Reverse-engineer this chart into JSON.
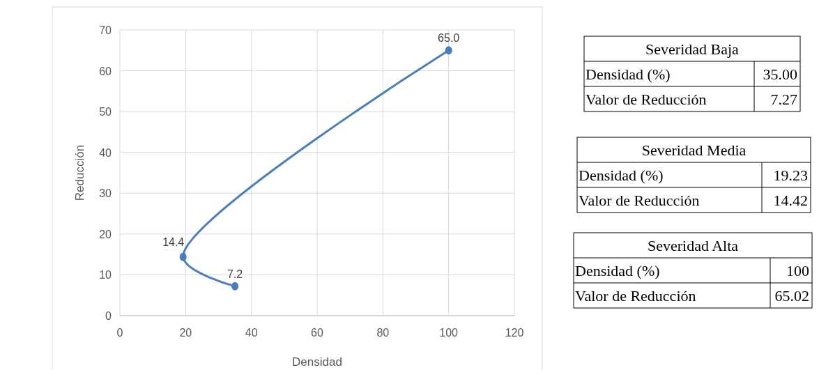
{
  "chart_data": {
    "type": "line",
    "xlabel": "Densidad",
    "ylabel": "Reducción",
    "x": [
      35,
      19.23,
      100
    ],
    "series": [
      {
        "color": "#4a7ebb",
        "values": [
          7.2,
          14.4,
          65.0
        ],
        "value_labels": [
          "7.2",
          "14.4",
          "65.0"
        ]
      }
    ],
    "xlim": [
      0,
      120
    ],
    "xticks": [
      0,
      20,
      40,
      60,
      80,
      100,
      120
    ],
    "ylim": [
      0,
      70
    ],
    "yticks": [
      0,
      10,
      20,
      30,
      40,
      50,
      60,
      70
    ],
    "grid": true,
    "marker": "circle",
    "line_style": "solid",
    "annotations": [
      "Severidad Baja",
      "Densidad (%)",
      "35.00",
      "Valor de Reducción",
      "7.27",
      "Severidad Media",
      "Densidad (%)",
      "19.23",
      "Valor de Reducción",
      "14.42",
      "Severidad Alta",
      "Densidad (%)",
      "100",
      "Valor de Reducción",
      "65.02"
    ]
  }
}
